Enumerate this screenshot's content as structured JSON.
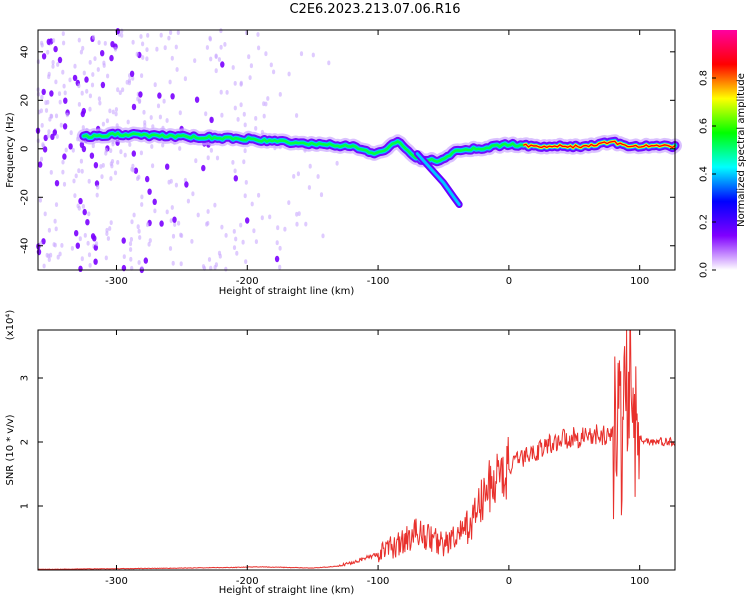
{
  "title": "C2E6.2023.213.07.06.R16",
  "chart_data": [
    {
      "type": "heatmap",
      "xlabel": "Height of straight line (km)",
      "ylabel": "Frequency (Hz)",
      "xlim": [
        -360,
        127
      ],
      "ylim": [
        -50,
        49
      ],
      "x_ticks": [
        -300,
        -200,
        -100,
        0,
        100
      ],
      "y_ticks": [
        -40,
        -20,
        0,
        20,
        40
      ],
      "colorbar": {
        "label": "Normalized spectral amplitude",
        "range": [
          0,
          1
        ],
        "ticks": [
          0.0,
          0.2,
          0.4,
          0.6,
          0.8
        ],
        "colors": [
          "#ffffff",
          "#8000ff",
          "#0000ff",
          "#00ffff",
          "#00ff00",
          "#ffff00",
          "#ff0000",
          "#ff00a0"
        ]
      },
      "ridge": {
        "x": [
          -325,
          -300,
          -250,
          -200,
          -150,
          -120,
          -100,
          -85,
          -70,
          -55,
          -40,
          -25,
          -10,
          0,
          20,
          60,
          80,
          90,
          100,
          127
        ],
        "y": [
          5,
          6,
          5,
          4,
          2,
          1,
          -2,
          3,
          -4,
          -5,
          -1,
          0,
          1,
          2,
          1,
          1,
          3,
          1,
          1,
          1
        ]
      },
      "branch": {
        "x": [
          -70,
          -60,
          -50,
          -42,
          -38
        ],
        "y": [
          -2,
          -8,
          -14,
          -20,
          -23
        ]
      },
      "noise_region_x": [
        -360,
        -130
      ]
    },
    {
      "type": "line",
      "xlabel": "Height of straight line (km)",
      "ylabel": "SNR (10 * v/v)",
      "y_multiplier": "(x10⁴)",
      "xlim": [
        -360,
        127
      ],
      "ylim": [
        0,
        3.75
      ],
      "x_ticks": [
        -300,
        -200,
        -100,
        0,
        100
      ],
      "y_ticks": [
        1,
        2,
        3
      ],
      "series": [
        {
          "color": "#e8302c",
          "x": [
            -360,
            -300,
            -250,
            -210,
            -190,
            -150,
            -130,
            -115,
            -100,
            -90,
            -80,
            -70,
            -60,
            -50,
            -40,
            -30,
            -20,
            -15,
            -10,
            0,
            10,
            20,
            30,
            40,
            60,
            80,
            85,
            90,
            92,
            95,
            100,
            110,
            127
          ],
          "y": [
            0.01,
            0.02,
            0.03,
            0.04,
            0.05,
            0.03,
            0.06,
            0.15,
            0.25,
            0.35,
            0.45,
            0.6,
            0.5,
            0.4,
            0.5,
            0.7,
            1.1,
            1.3,
            1.4,
            1.6,
            1.75,
            1.85,
            1.95,
            2.05,
            2.1,
            2.1,
            2.15,
            2.5,
            3.4,
            2.2,
            2.05,
            2.0,
            2.0
          ]
        }
      ]
    }
  ]
}
